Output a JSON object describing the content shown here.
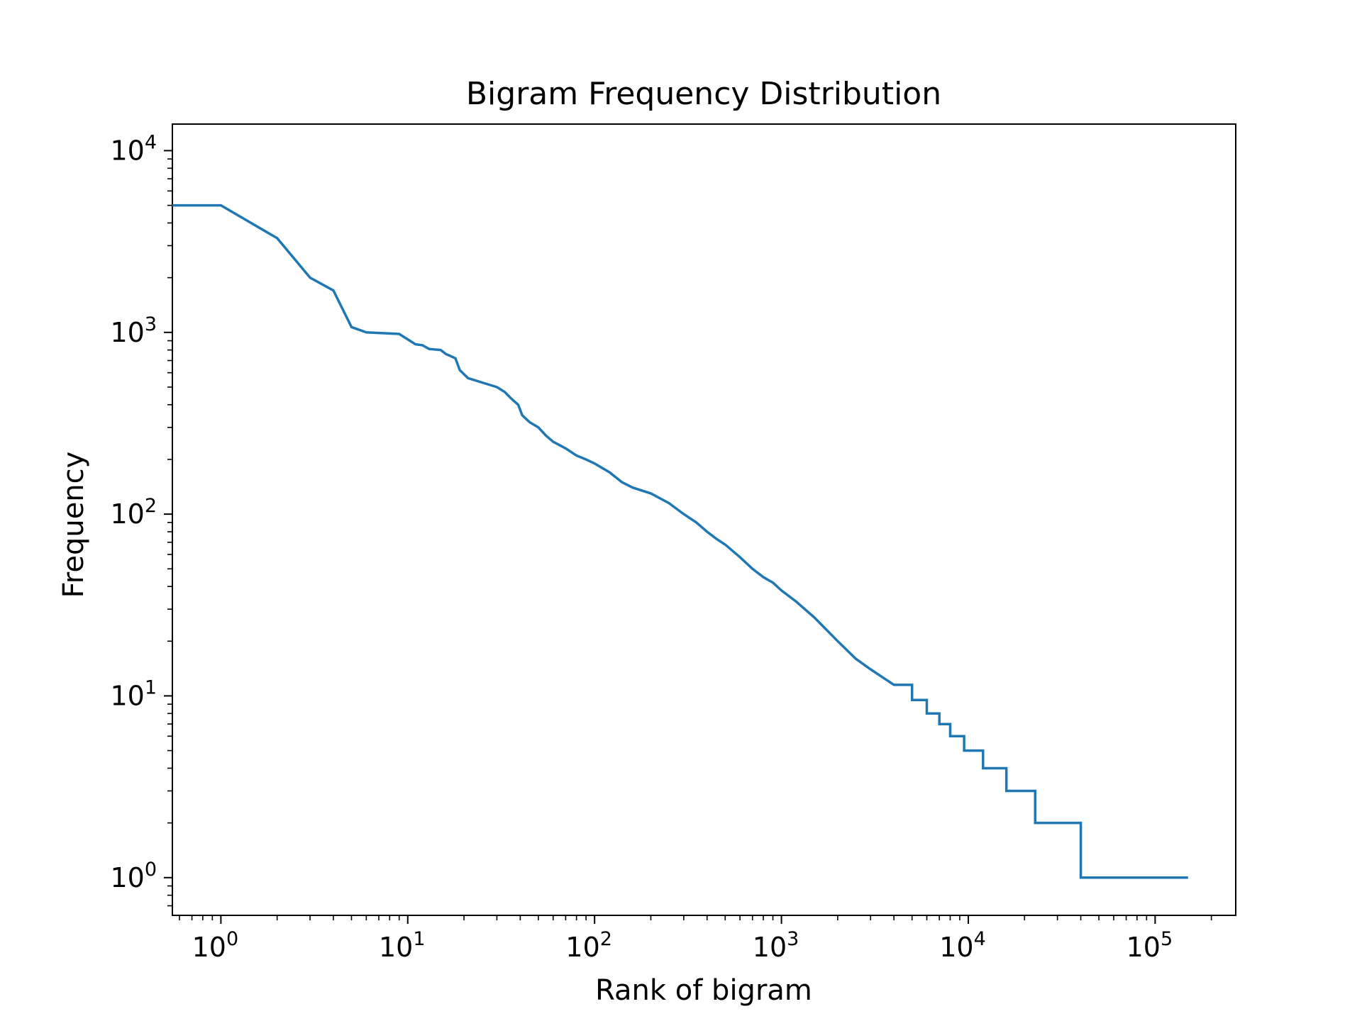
{
  "chart_data": {
    "type": "line",
    "title": "Bigram Frequency Distribution",
    "xlabel": "Rank of bigram",
    "ylabel": "Frequency",
    "xscale": "log",
    "yscale": "log",
    "xlim": [
      0.55,
      270000
    ],
    "ylim": [
      0.62,
      14000
    ],
    "grid": false,
    "line_color": "#1f77b4",
    "x_ticks": [
      {
        "value": 1,
        "base": "10",
        "exp": "0"
      },
      {
        "value": 10,
        "base": "10",
        "exp": "1"
      },
      {
        "value": 100,
        "base": "10",
        "exp": "2"
      },
      {
        "value": 1000,
        "base": "10",
        "exp": "3"
      },
      {
        "value": 10000,
        "base": "10",
        "exp": "4"
      },
      {
        "value": 100000,
        "base": "10",
        "exp": "5"
      }
    ],
    "y_ticks": [
      {
        "value": 1,
        "base": "10",
        "exp": "0"
      },
      {
        "value": 10,
        "base": "10",
        "exp": "1"
      },
      {
        "value": 100,
        "base": "10",
        "exp": "2"
      },
      {
        "value": 1000,
        "base": "10",
        "exp": "3"
      },
      {
        "value": 10000,
        "base": "10",
        "exp": "4"
      }
    ],
    "series": [
      {
        "x": [
          0.55,
          1,
          2,
          3,
          4,
          5,
          6,
          9,
          11,
          12,
          13,
          15,
          16,
          17,
          18,
          19,
          21,
          25,
          30,
          33,
          36,
          39,
          41,
          45,
          50,
          55,
          60,
          70,
          80,
          90,
          100,
          120,
          140,
          160,
          200,
          250,
          300,
          350,
          400,
          450,
          500,
          600,
          700,
          800,
          900,
          1000,
          1200,
          1500,
          2000,
          2500,
          3000,
          4000,
          5000,
          6000,
          7000,
          8000,
          9500,
          12000,
          16000,
          22800,
          40000,
          150000
        ],
        "y": [
          5000,
          5000,
          3300,
          2000,
          1700,
          1070,
          1000,
          980,
          860,
          850,
          810,
          800,
          760,
          740,
          720,
          620,
          560,
          530,
          500,
          470,
          430,
          400,
          350,
          320,
          300,
          270,
          250,
          230,
          210,
          200,
          190,
          170,
          150,
          140,
          130,
          115,
          100,
          90,
          80,
          73,
          68,
          58,
          50,
          45,
          42,
          38,
          33,
          27,
          20,
          16,
          14,
          11.5,
          9.5,
          8,
          7,
          6,
          5,
          4,
          3,
          2,
          1,
          1
        ]
      }
    ]
  }
}
